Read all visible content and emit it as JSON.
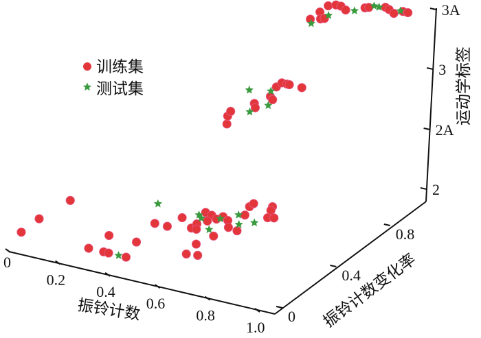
{
  "chart_data": {
    "type": "scatter",
    "projection": "3d",
    "xlabel": "振铃计数",
    "ylabel": "振铃计数变化率",
    "zlabel": "运动学标签",
    "x_ticks": [
      "0",
      "0.2",
      "0.4",
      "0.6",
      "0.8",
      "1.0"
    ],
    "y_ticks": [
      "0",
      "0.4",
      "0.8"
    ],
    "z_ticks": [
      "2",
      "2A",
      "3",
      "3A"
    ],
    "xlim": [
      0,
      1.0
    ],
    "ylim": [
      0,
      0.9
    ],
    "grid": false,
    "legend_placement": "top-left",
    "colors": {
      "train": "#e2363a",
      "test": "#3a9a3e"
    },
    "series": [
      {
        "name": "训练集",
        "marker": "circle",
        "points": [
          [
            0.0,
            0.08,
            "2"
          ],
          [
            0.0,
            0.21,
            "2"
          ],
          [
            0.02,
            0.4,
            "2"
          ],
          [
            0.27,
            0.08,
            "2"
          ],
          [
            0.33,
            0.08,
            "2"
          ],
          [
            0.35,
            0.08,
            "2"
          ],
          [
            0.42,
            0.08,
            "2"
          ],
          [
            0.28,
            0.21,
            "2"
          ],
          [
            0.39,
            0.21,
            "2"
          ],
          [
            0.37,
            0.38,
            "2"
          ],
          [
            0.42,
            0.38,
            "2"
          ],
          [
            0.43,
            0.47,
            "2"
          ],
          [
            0.5,
            0.41,
            "2"
          ],
          [
            0.5,
            0.45,
            "2"
          ],
          [
            0.52,
            0.41,
            "2"
          ],
          [
            0.48,
            0.55,
            "2"
          ],
          [
            0.51,
            0.54,
            "2"
          ],
          [
            0.52,
            0.49,
            "2"
          ],
          [
            0.54,
            0.52,
            "2"
          ],
          [
            0.55,
            0.55,
            "2"
          ],
          [
            0.58,
            0.53,
            "2"
          ],
          [
            0.61,
            0.48,
            "2"
          ],
          [
            0.6,
            0.39,
            "2"
          ],
          [
            0.58,
            0.3,
            "2"
          ],
          [
            0.59,
            0.21,
            "2"
          ],
          [
            0.63,
            0.22,
            "2"
          ],
          [
            0.65,
            0.47,
            "2"
          ],
          [
            0.61,
            0.6,
            "2"
          ],
          [
            0.59,
            0.67,
            "2"
          ],
          [
            0.59,
            0.7,
            "2"
          ],
          [
            0.66,
            0.71,
            "2"
          ],
          [
            0.67,
            0.68,
            "2"
          ],
          [
            0.69,
            0.62,
            "2"
          ],
          [
            0.71,
            0.63,
            "2"
          ],
          [
            0.67,
            0.36,
            "3"
          ],
          [
            0.64,
            0.42,
            "3"
          ],
          [
            0.63,
            0.46,
            "3"
          ],
          [
            0.67,
            0.56,
            "3"
          ],
          [
            0.69,
            0.53,
            "3"
          ],
          [
            0.69,
            0.64,
            "3"
          ],
          [
            0.71,
            0.62,
            "3"
          ],
          [
            0.67,
            0.72,
            "3"
          ],
          [
            0.67,
            0.76,
            "3"
          ],
          [
            0.69,
            0.76,
            "3"
          ],
          [
            0.7,
            0.76,
            "3"
          ],
          [
            0.75,
            0.76,
            "3"
          ],
          [
            0.74,
            0.84,
            "3A"
          ],
          [
            0.74,
            0.91,
            "3A"
          ],
          [
            0.77,
            0.86,
            "3A"
          ],
          [
            0.78,
            0.87,
            "3A"
          ],
          [
            0.74,
            0.97,
            "3A"
          ],
          [
            0.76,
            0.99,
            "3A"
          ],
          [
            0.78,
            0.99,
            "3A"
          ],
          [
            0.81,
            0.97,
            "3A"
          ],
          [
            0.86,
            1.02,
            "3A"
          ],
          [
            0.87,
            1.03,
            "3A"
          ],
          [
            0.92,
            1.06,
            "3A"
          ],
          [
            0.94,
            1.05,
            "3A"
          ],
          [
            0.97,
            1.03,
            "3A"
          ],
          [
            0.99,
            1.06,
            "3A"
          ],
          [
            1.01,
            1.06,
            "3A"
          ]
        ]
      },
      {
        "name": "测试集",
        "marker": "star",
        "points": [
          [
            0.39,
            0.08,
            "2"
          ],
          [
            0.3,
            0.53,
            "2"
          ],
          [
            0.47,
            0.52,
            "2"
          ],
          [
            0.49,
            0.5,
            "2"
          ],
          [
            0.56,
            0.43,
            "2"
          ],
          [
            0.55,
            0.53,
            "2"
          ],
          [
            0.59,
            0.59,
            "2"
          ],
          [
            0.63,
            0.52,
            "2"
          ],
          [
            0.67,
            0.56,
            "2"
          ],
          [
            0.6,
            0.65,
            "3"
          ],
          [
            0.67,
            0.68,
            "3"
          ],
          [
            0.69,
            0.49,
            "3"
          ],
          [
            0.72,
            0.57,
            "3"
          ],
          [
            0.76,
            0.81,
            "3A"
          ],
          [
            0.78,
            0.9,
            "3A"
          ],
          [
            0.84,
            0.98,
            "3A"
          ],
          [
            0.88,
            1.05,
            "3A"
          ],
          [
            0.9,
            1.05,
            "3A"
          ],
          [
            0.98,
            1.06,
            "3A"
          ]
        ]
      }
    ]
  }
}
